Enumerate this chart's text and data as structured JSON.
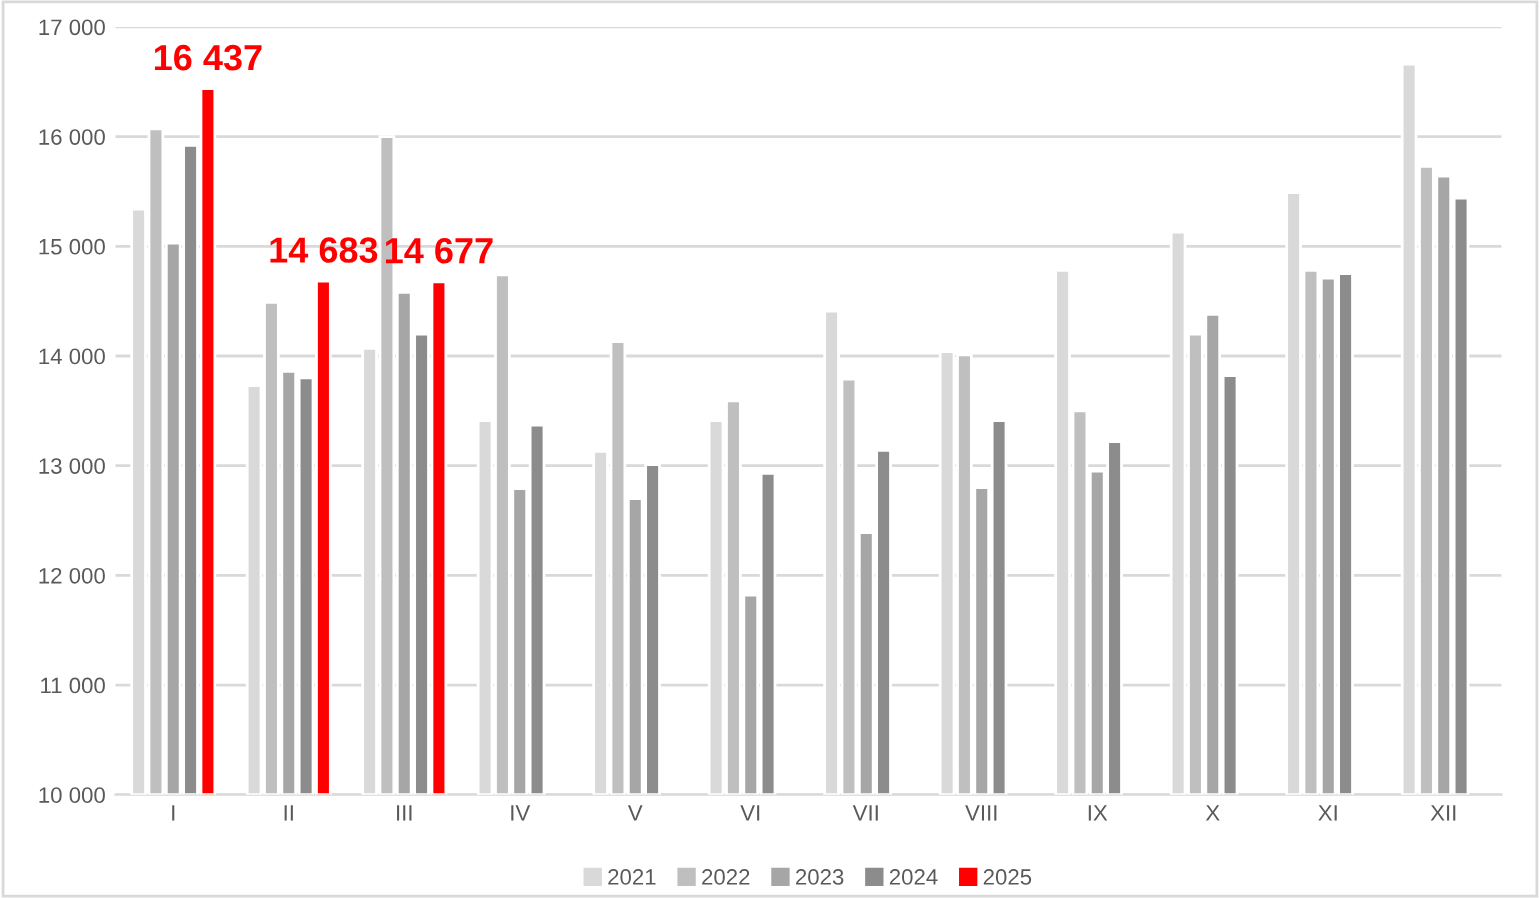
{
  "chart_data": {
    "type": "bar",
    "categories": [
      "I",
      "II",
      "III",
      "IV",
      "V",
      "VI",
      "VII",
      "VIII",
      "IX",
      "X",
      "XI",
      "XII"
    ],
    "series": [
      {
        "name": "2021",
        "color": "#d9d9d9",
        "values": [
          15340,
          13730,
          14070,
          13410,
          13130,
          13410,
          14410,
          14040,
          14780,
          15130,
          15490,
          16660
        ]
      },
      {
        "name": "2022",
        "color": "#bfbfbf",
        "values": [
          16070,
          14490,
          16000,
          14740,
          14130,
          13590,
          13790,
          14010,
          13500,
          14200,
          14780,
          15730
        ]
      },
      {
        "name": "2023",
        "color": "#a6a6a6",
        "values": [
          15030,
          13860,
          14580,
          12790,
          12700,
          11820,
          12390,
          12800,
          12950,
          14380,
          14710,
          15640
        ]
      },
      {
        "name": "2024",
        "color": "#8c8c8c",
        "values": [
          15920,
          13800,
          14200,
          13370,
          13010,
          12930,
          13140,
          13410,
          13220,
          13820,
          14750,
          15440
        ]
      },
      {
        "name": "2025",
        "color": "#ff0000",
        "values": [
          16437,
          14683,
          14677,
          null,
          null,
          null,
          null,
          null,
          null,
          null,
          null,
          null
        ],
        "value_labels": [
          "16 437",
          "14 683",
          "14 677",
          null,
          null,
          null,
          null,
          null,
          null,
          null,
          null,
          null
        ]
      }
    ],
    "ylim": [
      10000,
      17000
    ],
    "yticks": [
      {
        "value": 10000,
        "label": "10 000"
      },
      {
        "value": 11000,
        "label": "11 000"
      },
      {
        "value": 12000,
        "label": "12 000"
      },
      {
        "value": 13000,
        "label": "13 000"
      },
      {
        "value": 14000,
        "label": "14 000"
      },
      {
        "value": 15000,
        "label": "15 000"
      },
      {
        "value": 16000,
        "label": "16 000"
      },
      {
        "value": 17000,
        "label": "17 000"
      }
    ],
    "grid": "y",
    "legend": "bottom"
  }
}
